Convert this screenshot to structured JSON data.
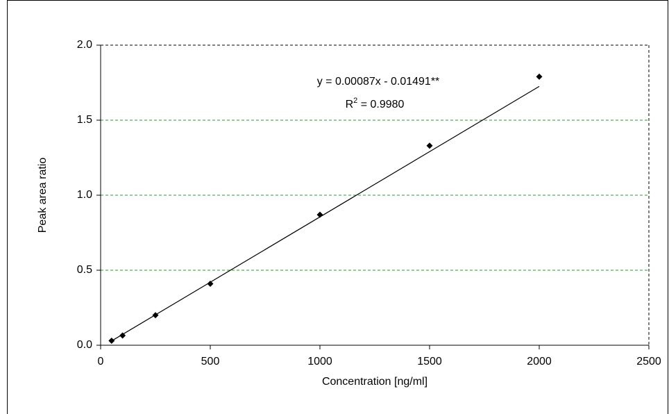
{
  "chart_data": {
    "type": "scatter",
    "x_label": "Concentration [ng/ml]",
    "y_label": "Peak area ratio",
    "x": [
      50,
      100,
      250,
      500,
      1000,
      1500,
      2000
    ],
    "values": [
      0.03,
      0.065,
      0.2,
      0.41,
      0.87,
      1.33,
      1.79
    ],
    "color": "#000000",
    "trendline": {
      "x": [
        50,
        2000
      ],
      "values": [
        0.0286,
        1.7251
      ],
      "color": "#000000",
      "equation": "y = 0.00087x - 0.01491**",
      "r2_symbol": "R",
      "r2_power": "2",
      "r2_text": " = 0.9980"
    },
    "xlim": [
      0,
      2500
    ],
    "xticks": [
      0,
      500,
      1000,
      1500,
      2000,
      2500
    ],
    "ylim": [
      0,
      2.0
    ],
    "yticks": [
      {
        "value": 0,
        "label": "0.0"
      },
      {
        "value": 0.5,
        "label": "0.5"
      },
      {
        "value": 1,
        "label": "1.0"
      },
      {
        "value": 1.5,
        "label": "1.5"
      },
      {
        "value": 2,
        "label": "2.0"
      }
    ],
    "grid": true,
    "grid_color": "#2e9a2e"
  }
}
